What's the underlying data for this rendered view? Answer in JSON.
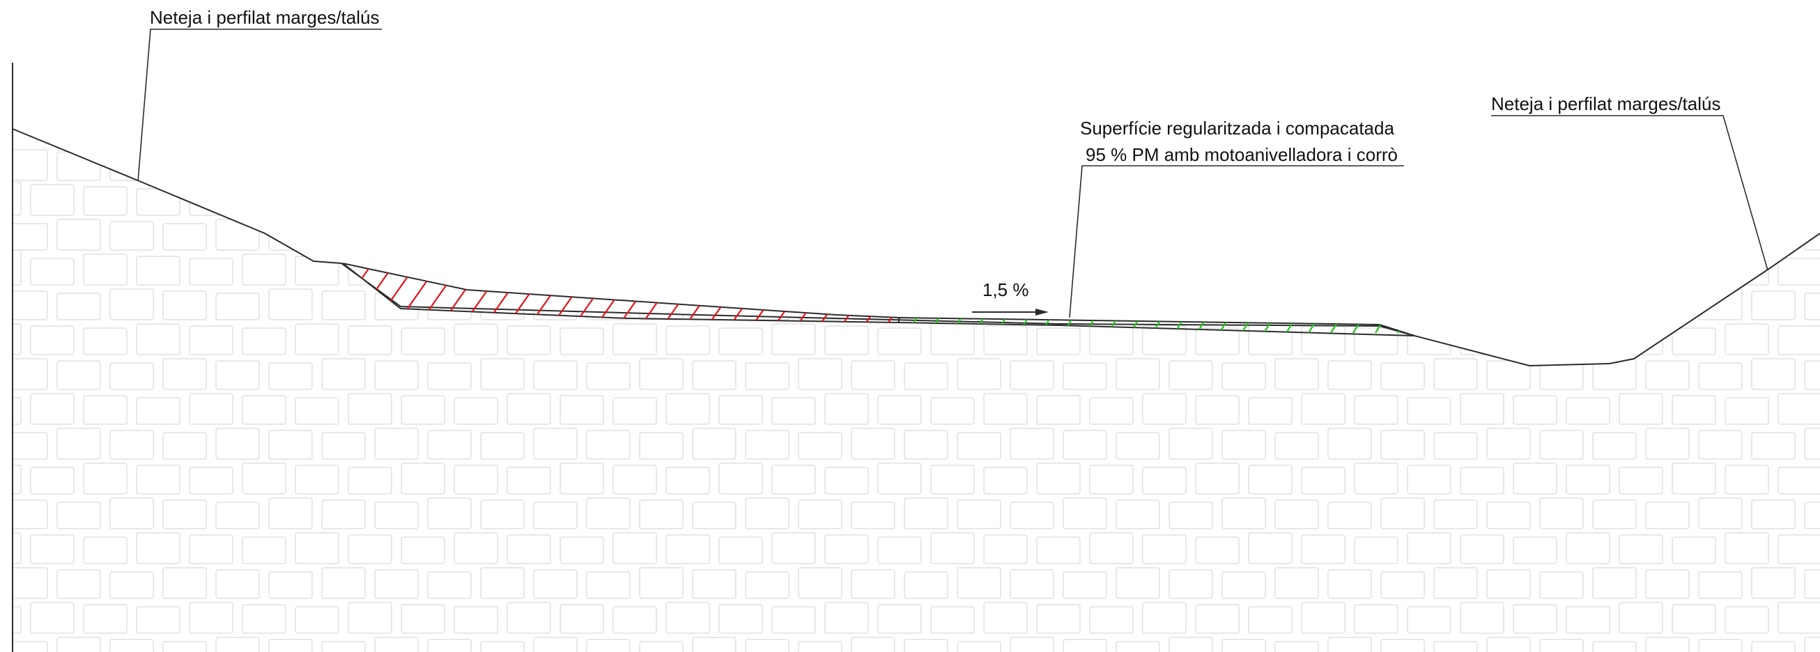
{
  "drawing": {
    "type": "cross-section",
    "labels": {
      "left_margin": "Neteja i perfilat marges/talús",
      "right_margin": "Neteja i perfilat marges/talús",
      "surface_line1": "Superfície regularitzada i compacatada",
      "surface_line2": "95 % PM amb motoanivelladora i corrò",
      "slope": "1,5 %"
    },
    "colors": {
      "line": "#2b2b2b",
      "cut_hatch": "#e0141a",
      "fill_hatch": "#22c21c",
      "soil_pattern": "#d9d9d9",
      "background": "#ffffff"
    }
  }
}
